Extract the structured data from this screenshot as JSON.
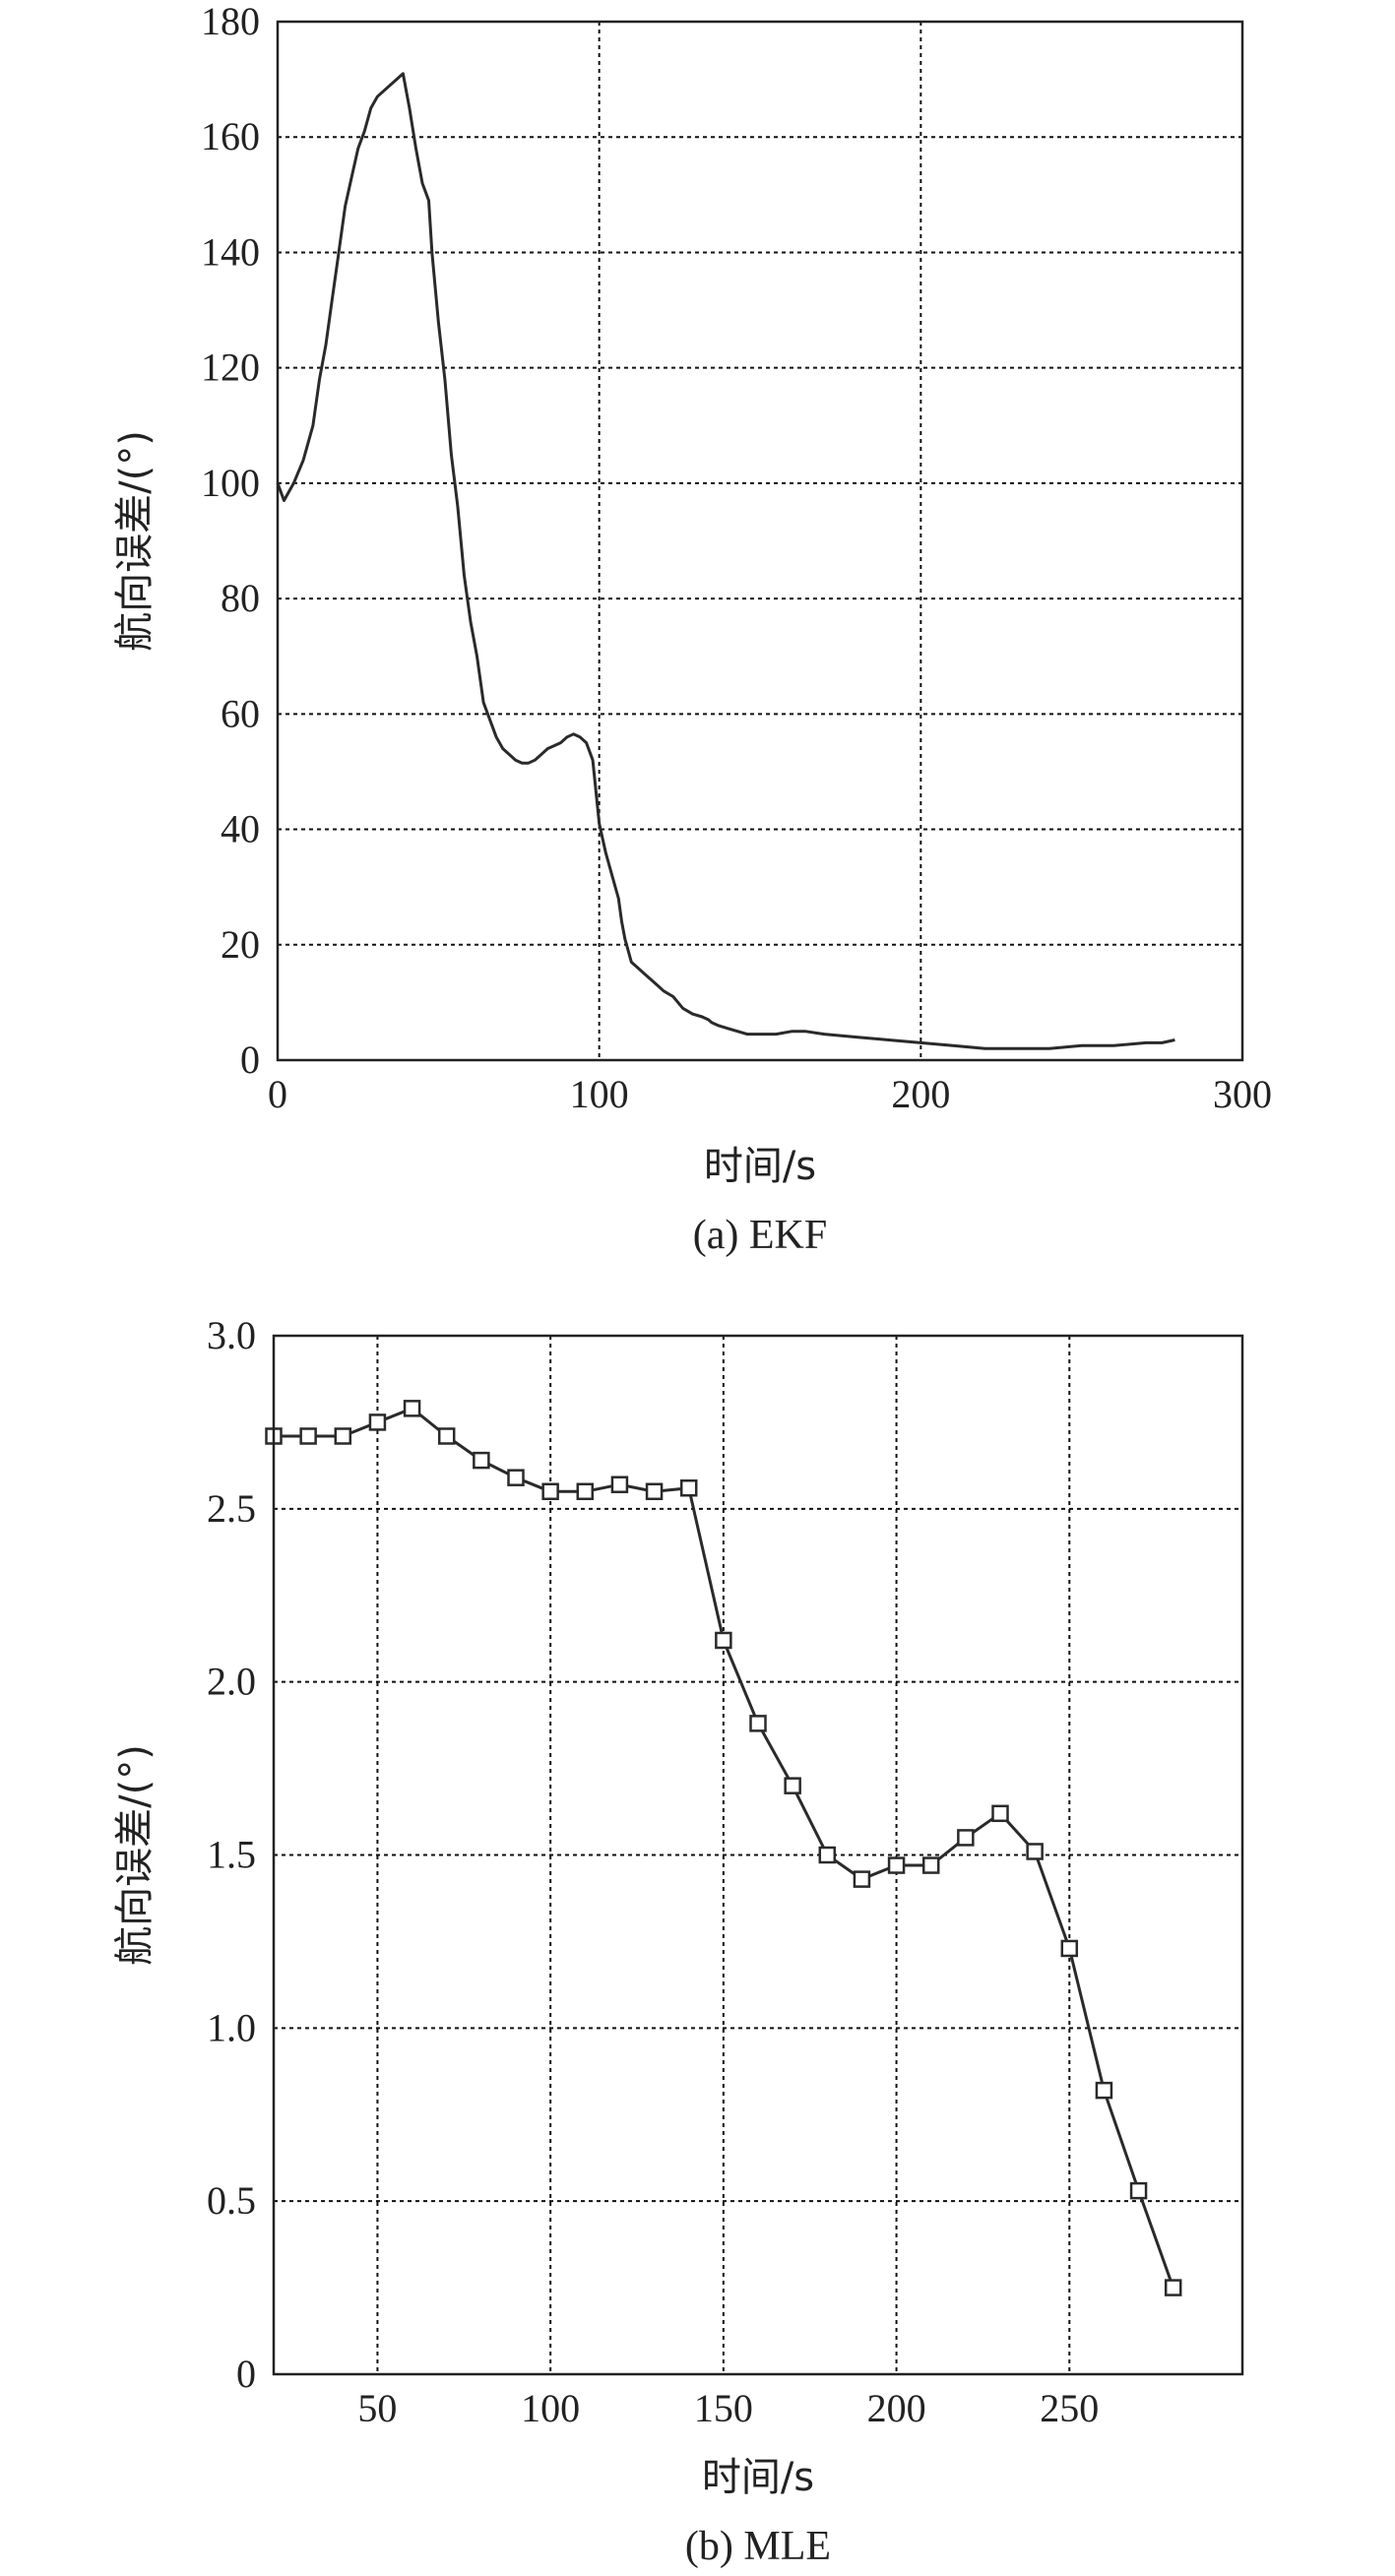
{
  "chart_data": [
    {
      "type": "line",
      "caption": "(a) EKF",
      "xlabel": "时间/s",
      "ylabel": "航向误差/(°)",
      "xlim": [
        0,
        300
      ],
      "ylim": [
        0,
        180
      ],
      "xticks": [
        0,
        100,
        200,
        300
      ],
      "yticks": [
        0,
        20,
        40,
        60,
        80,
        100,
        120,
        140,
        160,
        180
      ],
      "grid": true,
      "series": [
        {
          "color": "#2a2a2a",
          "marker": "none",
          "x": [
            0,
            2,
            5,
            8,
            11,
            13,
            15,
            17,
            19,
            21,
            23,
            25,
            27,
            29,
            31,
            33,
            35,
            37,
            39,
            41,
            43,
            45,
            47,
            48,
            50,
            52,
            54,
            56,
            57,
            58,
            60,
            62,
            63,
            64,
            66,
            68,
            70,
            72,
            74,
            76,
            78,
            80,
            82,
            84,
            86,
            88,
            90,
            92,
            94,
            96,
            98,
            100,
            102,
            104,
            106,
            107,
            108,
            109,
            110,
            112,
            114,
            116,
            118,
            120,
            123,
            126,
            129,
            132,
            134,
            135,
            137,
            140,
            143,
            146,
            150,
            155,
            160,
            164,
            170,
            180,
            190,
            200,
            210,
            220,
            230,
            240,
            250,
            260,
            270,
            275,
            279
          ],
          "values": [
            100,
            97,
            100,
            104,
            110,
            118,
            124,
            132,
            140,
            148,
            153,
            158,
            161,
            165,
            167,
            168,
            169,
            170,
            171,
            165,
            158,
            152,
            149,
            140,
            128,
            118,
            105,
            96,
            90,
            84,
            76,
            70,
            66,
            62,
            59,
            56,
            54,
            53,
            52,
            51.5,
            51.5,
            52,
            53,
            54,
            54.5,
            55,
            56,
            56.5,
            56,
            55,
            52,
            41,
            36,
            32,
            28,
            24,
            21,
            19,
            17,
            16,
            15,
            14,
            13,
            12,
            11,
            9,
            8,
            7.5,
            7,
            6.5,
            6,
            5.5,
            5,
            4.5,
            4.5,
            4.5,
            5,
            5,
            4.5,
            4,
            3.5,
            3,
            2.5,
            2,
            2,
            2,
            2.5,
            2.5,
            3,
            3,
            3.5
          ]
        }
      ]
    },
    {
      "type": "line",
      "caption": "(b) MLE",
      "xlabel": "时间/s",
      "ylabel": "航向误差/(°)",
      "xlim": [
        20,
        300
      ],
      "ylim": [
        0,
        3.0
      ],
      "xticks": [
        50,
        100,
        150,
        200,
        250
      ],
      "yticks": [
        0,
        0.5,
        1.0,
        1.5,
        2.0,
        2.5,
        3.0
      ],
      "ytick_labels": [
        "0",
        "0.5",
        "1.0",
        "1.5",
        "2.0",
        "2.5",
        "3.0"
      ],
      "grid": true,
      "series": [
        {
          "color": "#2a2a2a",
          "marker": "square",
          "x": [
            20,
            30,
            40,
            50,
            60,
            70,
            80,
            90,
            100,
            110,
            120,
            130,
            140,
            150,
            160,
            170,
            180,
            190,
            200,
            210,
            220,
            230,
            240,
            250,
            260,
            270,
            280
          ],
          "values": [
            2.71,
            2.71,
            2.71,
            2.75,
            2.79,
            2.71,
            2.64,
            2.59,
            2.55,
            2.55,
            2.57,
            2.55,
            2.56,
            2.12,
            1.88,
            1.7,
            1.5,
            1.43,
            1.47,
            1.47,
            1.55,
            1.62,
            1.51,
            1.23,
            0.82,
            0.53,
            0.25
          ]
        }
      ]
    }
  ]
}
